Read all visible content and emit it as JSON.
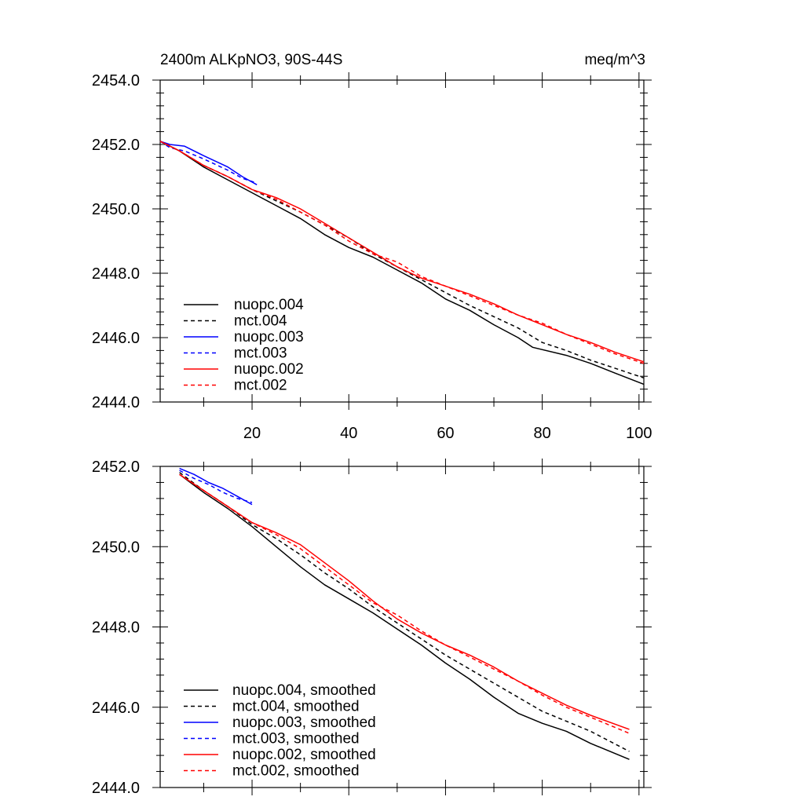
{
  "chart_data": [
    {
      "type": "line",
      "title": "2400m ALKpNO3, 90S-44S",
      "units": "meq/m^3",
      "xlabel": "",
      "ylabel": "",
      "xlim": [
        1,
        101
      ],
      "ylim": [
        2444.0,
        2454.0
      ],
      "x_ticks": [
        20,
        40,
        60,
        80,
        100
      ],
      "y_ticks": [
        "2444.0",
        "2446.0",
        "2448.0",
        "2450.0",
        "2452.0",
        "2454.0"
      ],
      "legend_position": "bottom-left",
      "series": [
        {
          "name": "nuopc.004",
          "color": "#000000",
          "dash": "solid",
          "x": [
            1,
            5,
            10,
            15,
            20,
            25,
            30,
            35,
            40,
            45,
            50,
            55,
            60,
            65,
            70,
            75,
            78,
            85,
            90,
            95,
            101
          ],
          "y": [
            2452.1,
            2451.8,
            2451.3,
            2450.9,
            2450.5,
            2450.1,
            2449.7,
            2449.2,
            2448.8,
            2448.5,
            2448.1,
            2447.7,
            2447.2,
            2446.85,
            2446.4,
            2446.0,
            2445.7,
            2445.45,
            2445.2,
            2444.9,
            2444.55
          ]
        },
        {
          "name": "mct.004",
          "color": "#000000",
          "dash": "dashed",
          "x": [
            1,
            5,
            10,
            15,
            20,
            25,
            30,
            35,
            40,
            45,
            50,
            55,
            60,
            65,
            70,
            75,
            80,
            85,
            90,
            95,
            101
          ],
          "y": [
            2452.1,
            2451.8,
            2451.35,
            2451.0,
            2450.6,
            2450.25,
            2449.9,
            2449.5,
            2449.1,
            2448.6,
            2448.2,
            2447.8,
            2447.4,
            2447.0,
            2446.65,
            2446.3,
            2445.85,
            2445.6,
            2445.3,
            2445.05,
            2444.75
          ]
        },
        {
          "name": "nuopc.003",
          "color": "#0000ff",
          "dash": "solid",
          "x": [
            1,
            3,
            6,
            10,
            15,
            18,
            21
          ],
          "y": [
            2452.1,
            2452.0,
            2451.95,
            2451.65,
            2451.3,
            2451.0,
            2450.75
          ]
        },
        {
          "name": "mct.003",
          "color": "#0000ff",
          "dash": "dashed",
          "x": [
            1,
            3,
            6,
            10,
            15,
            18,
            21
          ],
          "y": [
            2452.1,
            2451.9,
            2451.8,
            2451.55,
            2451.2,
            2450.95,
            2450.8
          ]
        },
        {
          "name": "nuopc.002",
          "color": "#ff0000",
          "dash": "solid",
          "x": [
            1,
            5,
            10,
            15,
            20,
            25,
            30,
            35,
            40,
            45,
            50,
            55,
            60,
            65,
            70,
            75,
            80,
            85,
            90,
            95,
            101
          ],
          "y": [
            2452.1,
            2451.8,
            2451.35,
            2451.0,
            2450.6,
            2450.35,
            2450.0,
            2449.55,
            2449.1,
            2448.65,
            2448.2,
            2447.85,
            2447.6,
            2447.35,
            2447.05,
            2446.7,
            2446.4,
            2446.1,
            2445.85,
            2445.55,
            2445.25
          ]
        },
        {
          "name": "mct.002",
          "color": "#ff0000",
          "dash": "dashed",
          "x": [
            1,
            5,
            10,
            15,
            20,
            25,
            30,
            35,
            40,
            45,
            50,
            55,
            60,
            65,
            70,
            75,
            80,
            85,
            90,
            95,
            101
          ],
          "y": [
            2452.1,
            2451.8,
            2451.35,
            2451.0,
            2450.6,
            2450.3,
            2449.9,
            2449.5,
            2449.0,
            2448.6,
            2448.35,
            2447.9,
            2447.6,
            2447.3,
            2447.0,
            2446.7,
            2446.45,
            2446.1,
            2445.8,
            2445.5,
            2445.2
          ]
        }
      ]
    },
    {
      "type": "line",
      "title": "",
      "xlabel": "",
      "ylabel": "",
      "xlim": [
        1,
        101
      ],
      "ylim": [
        2444.0,
        2452.0
      ],
      "x_ticks": [
        20,
        40,
        60,
        80,
        100
      ],
      "x_tick_labels_shown": false,
      "y_ticks": [
        "2444.0",
        "2446.0",
        "2448.0",
        "2450.0",
        "2452.0"
      ],
      "legend_position": "bottom-left",
      "series": [
        {
          "name": "nuopc.004, smoothed",
          "color": "#000000",
          "dash": "solid",
          "x": [
            5,
            10,
            15,
            20,
            25,
            30,
            35,
            40,
            45,
            50,
            55,
            60,
            65,
            70,
            75,
            80,
            85,
            90,
            98
          ],
          "y": [
            2451.8,
            2451.35,
            2450.95,
            2450.5,
            2450.0,
            2449.5,
            2449.05,
            2448.7,
            2448.35,
            2447.95,
            2447.55,
            2447.1,
            2446.7,
            2446.25,
            2445.85,
            2445.6,
            2445.4,
            2445.1,
            2444.7
          ]
        },
        {
          "name": "mct.004, smoothed",
          "color": "#000000",
          "dash": "dashed",
          "x": [
            5,
            10,
            15,
            20,
            25,
            30,
            35,
            40,
            45,
            50,
            55,
            60,
            65,
            70,
            75,
            80,
            85,
            90,
            98
          ],
          "y": [
            2451.85,
            2451.4,
            2451.0,
            2450.55,
            2450.2,
            2449.8,
            2449.35,
            2448.95,
            2448.5,
            2448.1,
            2447.7,
            2447.3,
            2446.95,
            2446.6,
            2446.25,
            2445.9,
            2445.65,
            2445.4,
            2444.9
          ]
        },
        {
          "name": "nuopc.003, smoothed",
          "color": "#0000ff",
          "dash": "solid",
          "x": [
            5,
            8,
            11,
            14,
            17,
            20
          ],
          "y": [
            2451.95,
            2451.8,
            2451.6,
            2451.45,
            2451.25,
            2451.05
          ]
        },
        {
          "name": "mct.003, smoothed",
          "color": "#0000ff",
          "dash": "dashed",
          "x": [
            5,
            8,
            11,
            14,
            17,
            20
          ],
          "y": [
            2451.9,
            2451.7,
            2451.55,
            2451.35,
            2451.2,
            2451.1
          ]
        },
        {
          "name": "nuopc.002, smoothed",
          "color": "#ff0000",
          "dash": "solid",
          "x": [
            5,
            10,
            15,
            20,
            25,
            30,
            35,
            40,
            45,
            50,
            55,
            60,
            65,
            70,
            75,
            80,
            85,
            90,
            98
          ],
          "y": [
            2451.8,
            2451.4,
            2451.0,
            2450.6,
            2450.35,
            2450.05,
            2449.6,
            2449.15,
            2448.65,
            2448.2,
            2447.85,
            2447.55,
            2447.3,
            2447.0,
            2446.65,
            2446.35,
            2446.05,
            2445.8,
            2445.45
          ]
        },
        {
          "name": "mct.002, smoothed",
          "color": "#ff0000",
          "dash": "dashed",
          "x": [
            5,
            10,
            15,
            20,
            25,
            30,
            35,
            40,
            45,
            50,
            55,
            60,
            65,
            70,
            75,
            80,
            85,
            90,
            98
          ],
          "y": [
            2451.8,
            2451.4,
            2451.0,
            2450.6,
            2450.3,
            2449.95,
            2449.5,
            2449.05,
            2448.6,
            2448.3,
            2447.9,
            2447.55,
            2447.25,
            2446.95,
            2446.65,
            2446.3,
            2446.0,
            2445.75,
            2445.35
          ]
        }
      ]
    }
  ]
}
